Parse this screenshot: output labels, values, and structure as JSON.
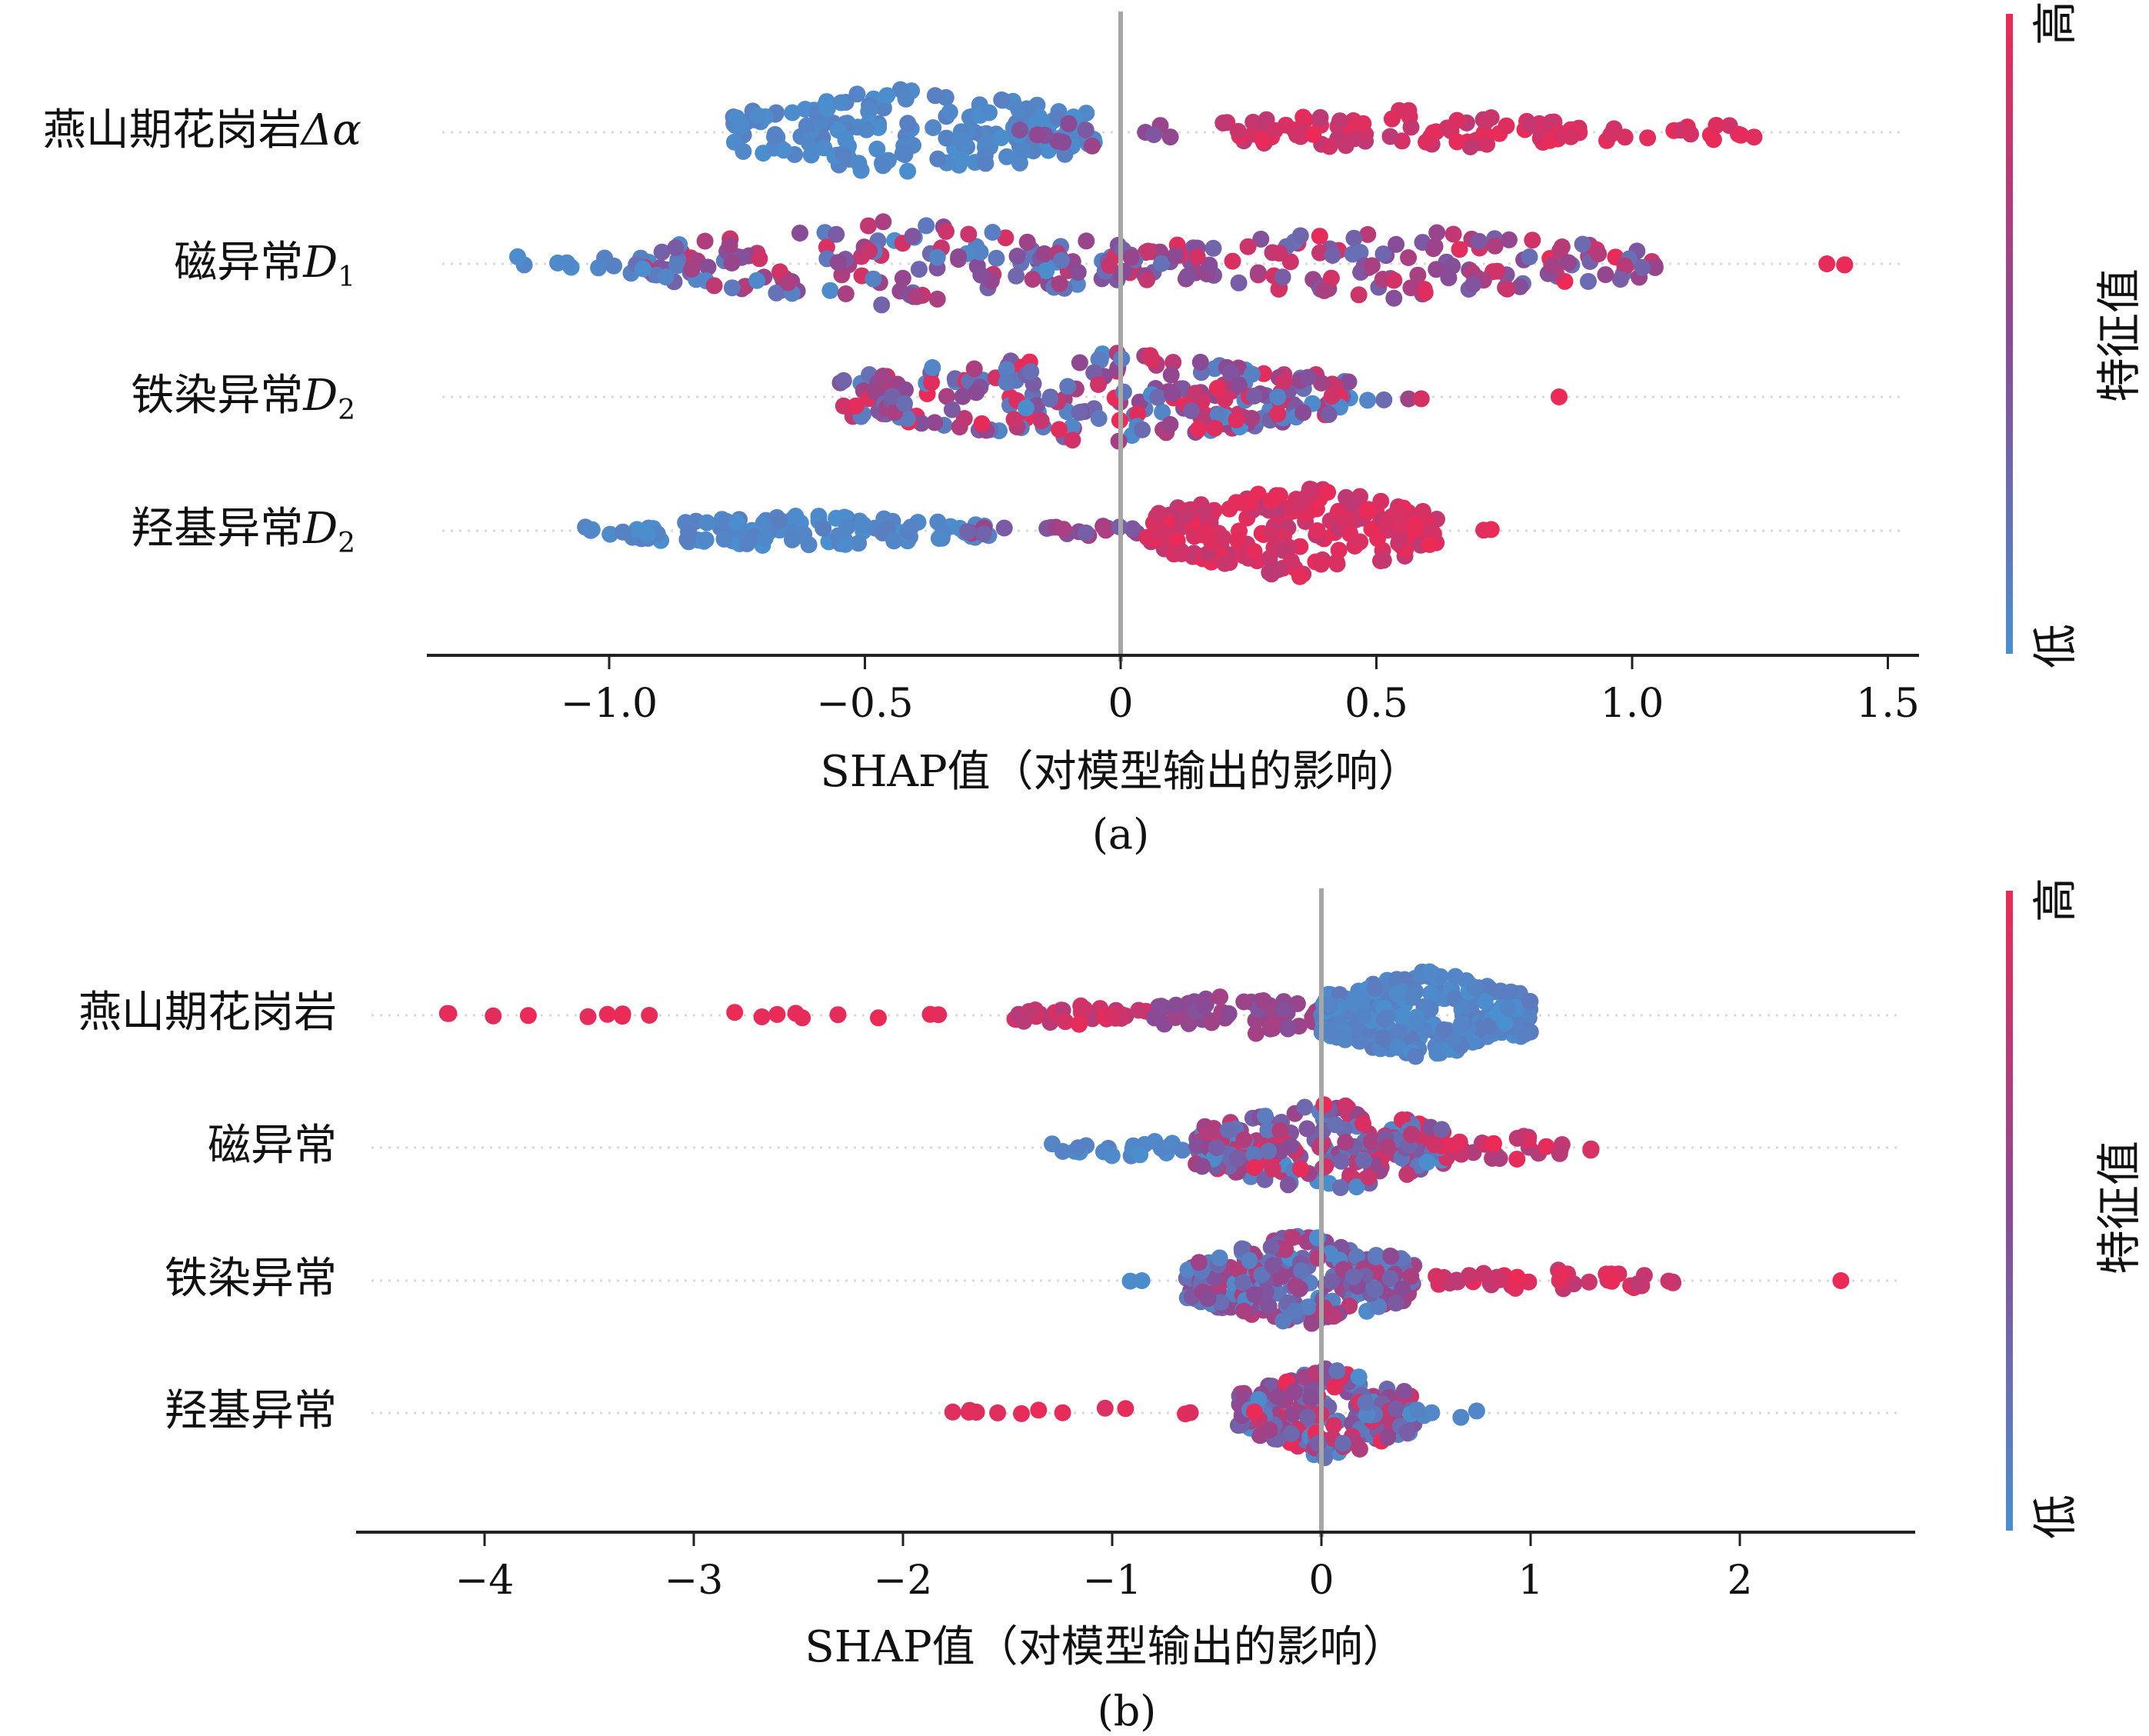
{
  "colors": {
    "low": "#4a8fcf",
    "mid": "#8a4a95",
    "high": "#ec2a56",
    "zero_line": "#a6a6a6",
    "axis": "#222222",
    "grid": "#d9d9d9"
  },
  "chart_data": [
    {
      "type": "scatter",
      "subtype": "shap-beeswarm",
      "caption": "(a)",
      "xlabel": "SHAP值（对模型输出的影响）",
      "xlim": [
        -1.36,
        1.55
      ],
      "xticks": [
        "−1.0",
        "−0.5",
        "0",
        "0.5",
        "1.0",
        "1.5"
      ],
      "xtick_values": [
        -1.0,
        -0.5,
        0,
        0.5,
        1.0,
        1.5
      ],
      "colorbar": {
        "high_label": "高",
        "low_label": "低",
        "title": "特征值"
      },
      "features": [
        {
          "label_main": "燕山期花岗岩",
          "label_var": "Δα",
          "label_sub": "",
          "groups": [
            {
              "range": [
                -0.76,
                -0.05
              ],
              "n": 190,
              "color": [
                0.0,
                0.12
              ],
              "spread": 1.0
            },
            {
              "range": [
                -0.2,
                0.1
              ],
              "n": 12,
              "color": [
                0.3,
                0.6
              ],
              "spread": 0.3
            },
            {
              "range": [
                0.2,
                0.9
              ],
              "n": 80,
              "color": [
                0.75,
                1.0
              ],
              "spread": 0.5
            },
            {
              "range": [
                0.85,
                1.25
              ],
              "n": 22,
              "color": [
                0.85,
                1.0
              ],
              "spread": 0.25
            }
          ]
        },
        {
          "label_main": "磁异常",
          "label_var": "D",
          "label_sub": "1",
          "groups": [
            {
              "range": [
                -1.22,
                -0.85
              ],
              "n": 14,
              "color": [
                0.0,
                0.1
              ],
              "spread": 0.3
            },
            {
              "range": [
                -0.95,
                0.05
              ],
              "n": 150,
              "color": [
                0.0,
                0.9
              ],
              "spread": 0.9
            },
            {
              "range": [
                0.0,
                1.05
              ],
              "n": 150,
              "color": [
                0.2,
                1.0
              ],
              "spread": 0.75
            },
            {
              "range": [
                1.38,
                1.42
              ],
              "n": 3,
              "color": [
                0.95,
                1.0
              ],
              "spread": 0.05
            }
          ]
        },
        {
          "label_main": "铁染异常",
          "label_var": "D",
          "label_sub": "2",
          "groups": [
            {
              "range": [
                -0.55,
                0.45
              ],
              "n": 260,
              "color": [
                0.0,
                1.0
              ],
              "spread": 1.0
            },
            {
              "range": [
                0.4,
                0.64
              ],
              "n": 5,
              "color": [
                0.0,
                0.9
              ],
              "spread": 0.1
            },
            {
              "range": [
                0.85,
                0.86
              ],
              "n": 1,
              "color": [
                1.0,
                1.0
              ],
              "spread": 0.0
            }
          ]
        },
        {
          "label_main": "羟基异常",
          "label_var": "D",
          "label_sub": "2",
          "groups": [
            {
              "range": [
                -1.05,
                -0.25
              ],
              "n": 110,
              "color": [
                0.0,
                0.12
              ],
              "spread": 0.35
            },
            {
              "range": [
                -0.3,
                0.05
              ],
              "n": 20,
              "color": [
                0.3,
                0.7
              ],
              "spread": 0.15
            },
            {
              "range": [
                0.05,
                0.62
              ],
              "n": 220,
              "color": [
                0.75,
                1.0
              ],
              "spread": 1.0
            },
            {
              "range": [
                0.7,
                0.73
              ],
              "n": 2,
              "color": [
                0.9,
                1.0
              ],
              "spread": 0.05
            }
          ]
        }
      ]
    },
    {
      "type": "scatter",
      "subtype": "shap-beeswarm",
      "caption": "(b)",
      "xlabel": "SHAP值（对模型输出的影响）",
      "xlim": [
        -4.6,
        2.8
      ],
      "xticks": [
        "−4",
        "−3",
        "−2",
        "−1",
        "0",
        "1",
        "2"
      ],
      "xtick_values": [
        -4,
        -3,
        -2,
        -1,
        0,
        1,
        2
      ],
      "colorbar": {
        "high_label": "高",
        "low_label": "低",
        "title": "特征值"
      },
      "features": [
        {
          "label_main": "燕山期花岗岩",
          "label_var": "",
          "label_sub": "",
          "groups": [
            {
              "range": [
                -4.3,
                -1.7
              ],
              "n": 18,
              "color": [
                0.95,
                1.0
              ],
              "spread": 0.1
            },
            {
              "range": [
                -1.5,
                -0.8
              ],
              "n": 30,
              "color": [
                0.7,
                1.0
              ],
              "spread": 0.25
            },
            {
              "range": [
                -0.8,
                0.0
              ],
              "n": 60,
              "color": [
                0.45,
                0.65
              ],
              "spread": 0.45
            },
            {
              "range": [
                0.0,
                1.0
              ],
              "n": 260,
              "color": [
                0.0,
                0.15
              ],
              "spread": 1.0
            }
          ]
        },
        {
          "label_main": "磁异常",
          "label_var": "",
          "label_sub": "",
          "groups": [
            {
              "range": [
                -1.3,
                -0.6
              ],
              "n": 20,
              "color": [
                0.0,
                0.1
              ],
              "spread": 0.2
            },
            {
              "range": [
                -0.6,
                0.6
              ],
              "n": 220,
              "color": [
                0.0,
                1.0
              ],
              "spread": 1.0
            },
            {
              "range": [
                0.6,
                1.3
              ],
              "n": 25,
              "color": [
                0.65,
                1.0
              ],
              "spread": 0.3
            }
          ]
        },
        {
          "label_main": "铁染异常",
          "label_var": "",
          "label_sub": "",
          "groups": [
            {
              "range": [
                -0.97,
                -0.85
              ],
              "n": 2,
              "color": [
                0.0,
                0.05
              ],
              "spread": 0.05
            },
            {
              "range": [
                -0.65,
                0.45
              ],
              "n": 260,
              "color": [
                0.0,
                0.75
              ],
              "spread": 1.0
            },
            {
              "range": [
                0.45,
                1.7
              ],
              "n": 40,
              "color": [
                0.75,
                1.0
              ],
              "spread": 0.25
            },
            {
              "range": [
                2.45,
                2.5
              ],
              "n": 1,
              "color": [
                1.0,
                1.0
              ],
              "spread": 0.0
            }
          ]
        },
        {
          "label_main": "羟基异常",
          "label_var": "",
          "label_sub": "",
          "groups": [
            {
              "range": [
                -1.8,
                -0.55
              ],
              "n": 14,
              "color": [
                0.9,
                1.0
              ],
              "spread": 0.12
            },
            {
              "range": [
                -0.4,
                0.45
              ],
              "n": 200,
              "color": [
                0.0,
                1.0
              ],
              "spread": 1.0
            },
            {
              "range": [
                0.4,
                0.75
              ],
              "n": 6,
              "color": [
                0.0,
                0.1
              ],
              "spread": 0.15
            }
          ]
        }
      ]
    }
  ]
}
